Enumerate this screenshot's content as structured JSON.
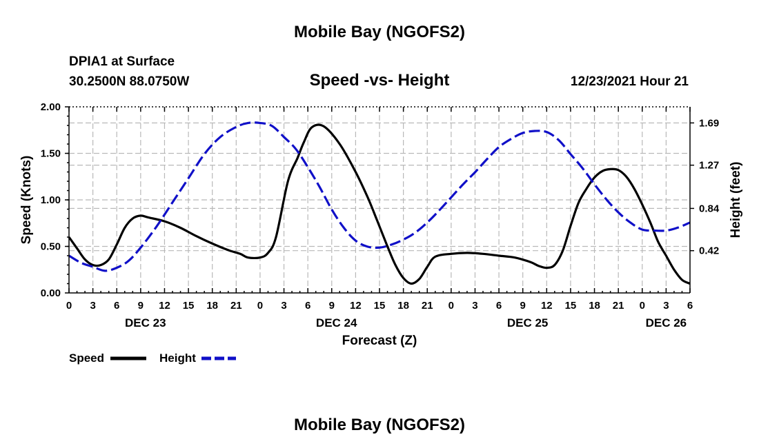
{
  "page": {
    "title": "Mobile Bay (NGOFS2)",
    "footer_title": "Mobile Bay (NGOFS2)",
    "station": "DPIA1 at Surface",
    "coords": "30.2500N  88.0750W",
    "date": "12/23/2021 Hour 21"
  },
  "colors": {
    "speed": "#000000",
    "height": "#1010c8",
    "grid": "#b8b8b8"
  },
  "chart_data": {
    "type": "line",
    "title": "Speed -vs- Height",
    "xlabel": "Forecast (Z)",
    "ylabel": "Speed (Knots)",
    "y2label": "Height (feet)",
    "xlim": [
      0,
      78
    ],
    "ylim": [
      0,
      2.0
    ],
    "y2lim": [
      0.0,
      1.85
    ],
    "x_ticks": [
      0,
      3,
      6,
      9,
      12,
      15,
      18,
      21,
      24,
      27,
      30,
      33,
      36,
      39,
      42,
      45,
      48,
      51,
      54,
      57,
      60,
      63,
      66,
      69,
      72,
      75,
      78
    ],
    "x_tick_labels": [
      "0",
      "3",
      "6",
      "9",
      "12",
      "15",
      "18",
      "21",
      "0",
      "3",
      "6",
      "9",
      "12",
      "15",
      "18",
      "21",
      "0",
      "3",
      "6",
      "9",
      "12",
      "15",
      "18",
      "21",
      "0",
      "3",
      "6"
    ],
    "y_ticks": [
      0,
      0.5,
      1.0,
      1.5,
      2.0
    ],
    "y_tick_labels": [
      "0.00",
      "0.50",
      "1.00",
      "1.50",
      "2.00"
    ],
    "y2_ticks": [
      0.42,
      0.84,
      1.27,
      1.69
    ],
    "y2_tick_labels": [
      "0.42",
      "0.84",
      "1.27",
      "1.69"
    ],
    "day_labels": [
      {
        "x": 9.6,
        "label": "DEC 23"
      },
      {
        "x": 33.6,
        "label": "DEC 24"
      },
      {
        "x": 57.6,
        "label": "DEC 25"
      },
      {
        "x": 75,
        "label": "DEC 26"
      }
    ],
    "legend": [
      {
        "name": "Speed",
        "style": "solid"
      },
      {
        "name": "Height",
        "style": "dashed"
      }
    ],
    "series": [
      {
        "name": "Speed",
        "axis": "left",
        "style": "solid",
        "x": [
          0,
          1,
          2,
          3,
          4,
          5,
          6,
          7,
          8,
          9,
          10,
          12,
          14,
          16,
          18,
          20,
          21.5,
          22.5,
          24,
          25,
          26,
          27.5,
          28.7,
          29.5,
          30.5,
          32,
          34,
          36,
          37.5,
          38.7,
          40,
          41,
          42,
          43,
          44,
          45,
          46,
          48,
          50,
          52,
          54,
          56,
          58,
          59,
          60,
          61,
          62,
          63,
          64,
          65,
          66,
          67,
          68,
          69,
          70,
          71,
          72,
          73,
          74,
          75,
          76,
          77,
          78
        ],
        "y": [
          0.6,
          0.48,
          0.36,
          0.3,
          0.3,
          0.36,
          0.52,
          0.7,
          0.8,
          0.83,
          0.81,
          0.77,
          0.7,
          0.61,
          0.53,
          0.46,
          0.42,
          0.38,
          0.38,
          0.43,
          0.6,
          1.2,
          1.45,
          1.62,
          1.78,
          1.79,
          1.6,
          1.3,
          1.03,
          0.78,
          0.5,
          0.3,
          0.16,
          0.1,
          0.15,
          0.28,
          0.39,
          0.42,
          0.43,
          0.42,
          0.4,
          0.38,
          0.33,
          0.29,
          0.27,
          0.3,
          0.45,
          0.72,
          0.97,
          1.12,
          1.24,
          1.31,
          1.33,
          1.32,
          1.25,
          1.12,
          0.95,
          0.76,
          0.55,
          0.4,
          0.25,
          0.14,
          0.1
        ]
      },
      {
        "name": "Height",
        "axis": "right",
        "style": "dashed",
        "x": [
          0,
          1.5,
          3,
          4.5,
          6,
          7.5,
          9,
          11,
          13,
          15,
          17,
          19,
          21,
          22.5,
          24,
          25.5,
          27,
          28.5,
          30,
          31.5,
          33,
          34.5,
          36,
          37.5,
          39,
          40.5,
          42,
          43.5,
          45,
          46.5,
          48,
          49.5,
          51,
          52.5,
          54,
          55.5,
          57,
          58.5,
          60,
          61.5,
          63,
          64.5,
          66,
          67.5,
          69,
          70.5,
          72,
          73.5,
          75,
          76.5,
          78
        ],
        "y": [
          0.37,
          0.3,
          0.26,
          0.22,
          0.25,
          0.32,
          0.45,
          0.66,
          0.9,
          1.14,
          1.38,
          1.55,
          1.65,
          1.69,
          1.69,
          1.66,
          1.55,
          1.43,
          1.25,
          1.05,
          0.83,
          0.65,
          0.52,
          0.46,
          0.45,
          0.48,
          0.53,
          0.6,
          0.7,
          0.82,
          0.95,
          1.08,
          1.2,
          1.33,
          1.45,
          1.53,
          1.59,
          1.61,
          1.6,
          1.52,
          1.38,
          1.24,
          1.08,
          0.93,
          0.8,
          0.7,
          0.63,
          0.62,
          0.62,
          0.65,
          0.7
        ]
      }
    ]
  }
}
